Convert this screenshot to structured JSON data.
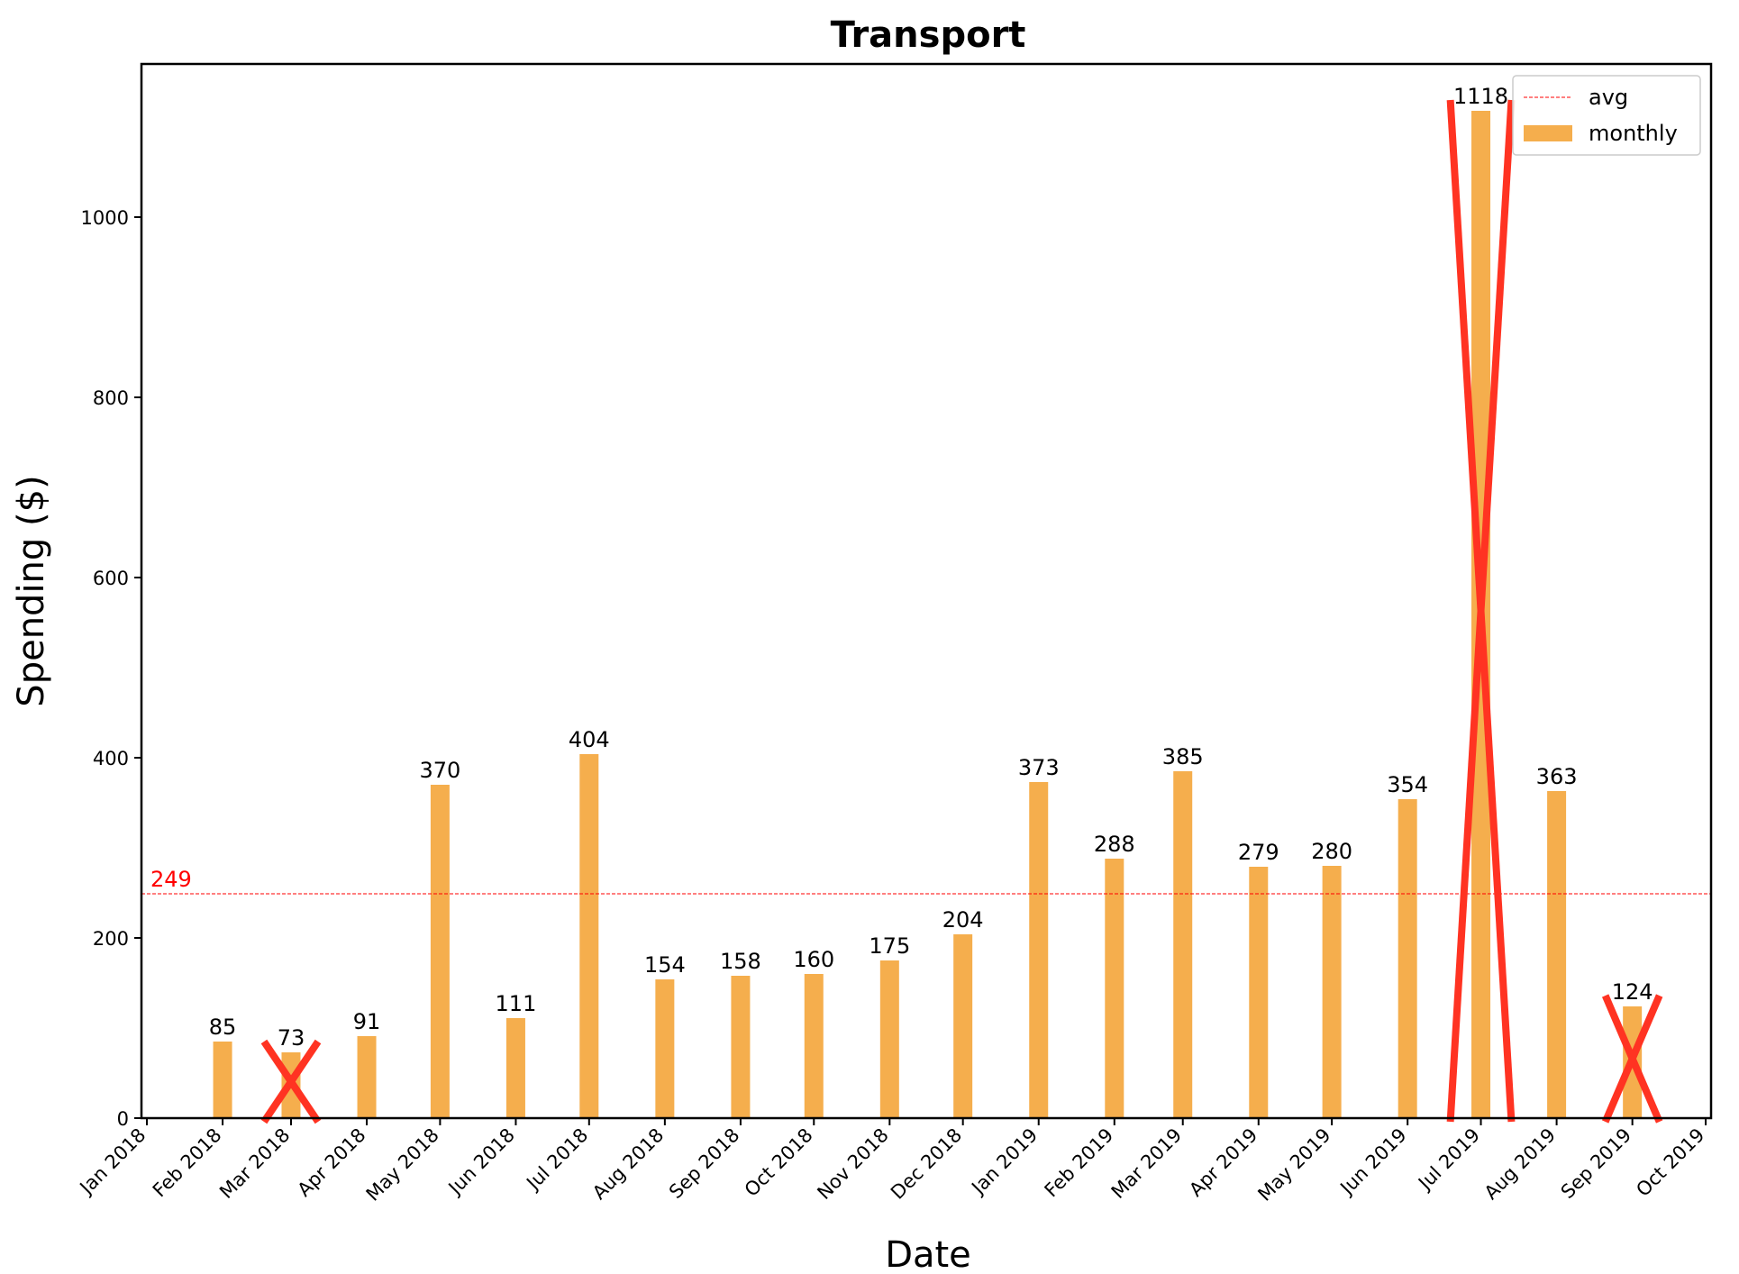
{
  "chart_data": {
    "type": "bar",
    "title": "Transport",
    "xlabel": "Date",
    "ylabel": "Spending ($)",
    "ylim": [
      0,
      1170
    ],
    "yticks": [
      0,
      200,
      400,
      600,
      800,
      1000
    ],
    "x_tick_labels": [
      "Jan 2018",
      "Feb 2018",
      "Mar 2018",
      "Apr 2018",
      "May 2018",
      "Jun 2018",
      "Jul 2018",
      "Aug 2018",
      "Sep 2018",
      "Oct 2018",
      "Nov 2018",
      "Dec 2018",
      "Jan 2019",
      "Feb 2019",
      "Mar 2019",
      "Apr 2019",
      "May 2019",
      "Jun 2019",
      "Jul 2019",
      "Aug 2019",
      "Sep 2019",
      "Oct 2019"
    ],
    "x_range": [
      "2018-01-01",
      "2019-10-01"
    ],
    "bars": [
      {
        "date": "2018-02-01",
        "value": 85,
        "crossed": false
      },
      {
        "date": "2018-03-01",
        "value": 73,
        "crossed": true
      },
      {
        "date": "2018-04-01",
        "value": 91,
        "crossed": false
      },
      {
        "date": "2018-05-01",
        "value": 370,
        "crossed": false
      },
      {
        "date": "2018-06-01",
        "value": 111,
        "crossed": false
      },
      {
        "date": "2018-07-01",
        "value": 404,
        "crossed": false
      },
      {
        "date": "2018-08-01",
        "value": 154,
        "crossed": false
      },
      {
        "date": "2018-09-01",
        "value": 158,
        "crossed": false
      },
      {
        "date": "2018-10-01",
        "value": 160,
        "crossed": false
      },
      {
        "date": "2018-11-01",
        "value": 175,
        "crossed": false
      },
      {
        "date": "2018-12-01",
        "value": 204,
        "crossed": false
      },
      {
        "date": "2019-01-01",
        "value": 373,
        "crossed": false
      },
      {
        "date": "2019-02-01",
        "value": 288,
        "crossed": false
      },
      {
        "date": "2019-03-01",
        "value": 385,
        "crossed": false
      },
      {
        "date": "2019-04-01",
        "value": 279,
        "crossed": false
      },
      {
        "date": "2019-05-01",
        "value": 280,
        "crossed": false
      },
      {
        "date": "2019-06-01",
        "value": 354,
        "crossed": false
      },
      {
        "date": "2019-07-01",
        "value": 1118,
        "crossed": true
      },
      {
        "date": "2019-08-01",
        "value": 363,
        "crossed": false
      },
      {
        "date": "2019-09-01",
        "value": 124,
        "crossed": true
      }
    ],
    "average": {
      "value": 249,
      "label": "249"
    },
    "legend": {
      "position": "top-right",
      "entries": [
        {
          "label": "avg",
          "style": "dashed-line",
          "color": "#ff0000"
        },
        {
          "label": "monthly",
          "style": "patch",
          "color": "#f5ae4d"
        }
      ]
    },
    "colors": {
      "bar": "#f5ae4d",
      "avg_line": "#ff0000",
      "cross_mark": "#ff3322"
    },
    "grid": false
  }
}
